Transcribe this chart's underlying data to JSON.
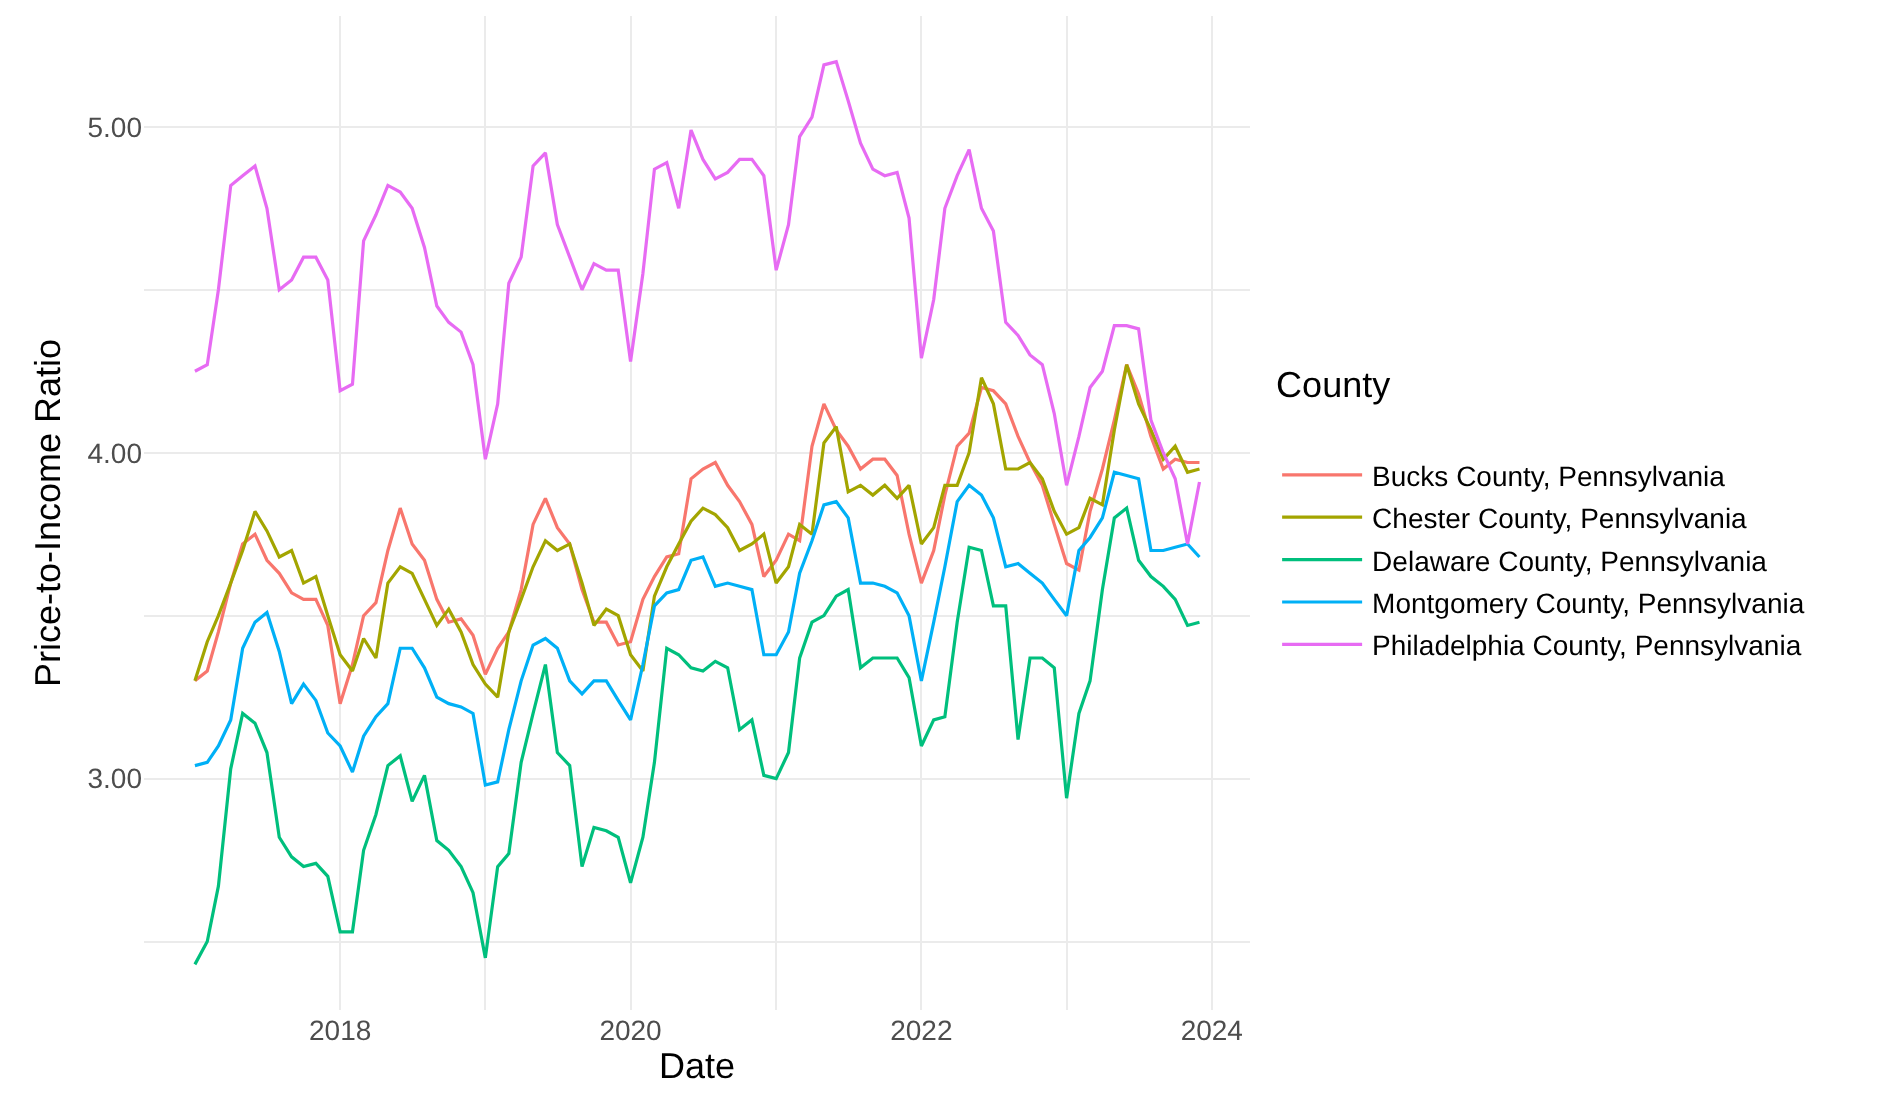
{
  "chart_data": {
    "type": "line",
    "xlabel": "Date",
    "ylabel": "Price-to-Income Ratio",
    "legend_title": "County",
    "legend": "right",
    "grid": true,
    "x": [
      "2017-01",
      "2017-02",
      "2017-03",
      "2017-04",
      "2017-05",
      "2017-06",
      "2017-07",
      "2017-08",
      "2017-09",
      "2017-10",
      "2017-11",
      "2017-12",
      "2018-01",
      "2018-02",
      "2018-03",
      "2018-04",
      "2018-05",
      "2018-06",
      "2018-07",
      "2018-08",
      "2018-09",
      "2018-10",
      "2018-11",
      "2018-12",
      "2019-01",
      "2019-02",
      "2019-03",
      "2019-04",
      "2019-05",
      "2019-06",
      "2019-07",
      "2019-08",
      "2019-09",
      "2019-10",
      "2019-11",
      "2019-12",
      "2020-01",
      "2020-02",
      "2020-03",
      "2020-04",
      "2020-05",
      "2020-06",
      "2020-07",
      "2020-08",
      "2020-09",
      "2020-10",
      "2020-11",
      "2020-12",
      "2021-01",
      "2021-02",
      "2021-03",
      "2021-04",
      "2021-05",
      "2021-06",
      "2021-07",
      "2021-08",
      "2021-09",
      "2021-10",
      "2021-11",
      "2021-12",
      "2022-01",
      "2022-02",
      "2022-03",
      "2022-04",
      "2022-05",
      "2022-06",
      "2022-07",
      "2022-08",
      "2022-09",
      "2022-10",
      "2022-11",
      "2022-12",
      "2023-01",
      "2023-02",
      "2023-03",
      "2023-04",
      "2023-05",
      "2023-06",
      "2023-07",
      "2023-08",
      "2023-09",
      "2023-10",
      "2023-11",
      "2023-12"
    ],
    "xlim": [
      "2016-08-26",
      "2024-04-06"
    ],
    "xticks": [
      {
        "value": "2018-01-01",
        "label": "2018"
      },
      {
        "value": "2019-01-01",
        "label": null
      },
      {
        "value": "2020-01-01",
        "label": "2020"
      },
      {
        "value": "2021-01-01",
        "label": null
      },
      {
        "value": "2022-01-01",
        "label": "2022"
      },
      {
        "value": "2023-01-01",
        "label": null
      },
      {
        "value": "2024-01-01",
        "label": "2024"
      }
    ],
    "ylim": [
      2.29,
      5.34
    ],
    "yticks": [
      {
        "value": 2.5,
        "label": null
      },
      {
        "value": 3,
        "label": "3.00"
      },
      {
        "value": 3.5,
        "label": null
      },
      {
        "value": 4,
        "label": "4.00"
      },
      {
        "value": 4.5,
        "label": null
      },
      {
        "value": 5,
        "label": "5.00"
      }
    ],
    "series": [
      {
        "name": "Bucks County, Pennsylvania",
        "color": "#f8766d",
        "values": [
          3.3,
          3.33,
          3.45,
          3.6,
          3.72,
          3.75,
          3.67,
          3.63,
          3.57,
          3.55,
          3.55,
          3.47,
          3.23,
          3.35,
          3.5,
          3.54,
          3.7,
          3.83,
          3.72,
          3.67,
          3.55,
          3.48,
          3.49,
          3.44,
          3.32,
          3.4,
          3.45,
          3.58,
          3.78,
          3.86,
          3.77,
          3.72,
          3.58,
          3.48,
          3.48,
          3.41,
          3.42,
          3.55,
          3.62,
          3.68,
          3.69,
          3.92,
          3.95,
          3.97,
          3.9,
          3.85,
          3.78,
          3.62,
          3.67,
          3.75,
          3.73,
          4.02,
          4.15,
          4.07,
          4.02,
          3.95,
          3.98,
          3.98,
          3.93,
          3.75,
          3.6,
          3.7,
          3.87,
          4.02,
          4.06,
          4.2,
          4.19,
          4.15,
          4.05,
          3.97,
          3.9,
          3.78,
          3.66,
          3.64,
          3.82,
          3.95,
          4.1,
          4.27,
          4.18,
          4.05,
          3.95,
          3.98,
          3.97,
          3.97
        ]
      },
      {
        "name": "Chester County, Pennsylvania",
        "color": "#a3a500",
        "values": [
          3.3,
          3.42,
          3.5,
          3.6,
          3.7,
          3.82,
          3.76,
          3.68,
          3.7,
          3.6,
          3.62,
          3.5,
          3.38,
          3.33,
          3.43,
          3.37,
          3.6,
          3.65,
          3.63,
          3.55,
          3.47,
          3.52,
          3.45,
          3.35,
          3.29,
          3.25,
          3.45,
          3.55,
          3.65,
          3.73,
          3.7,
          3.72,
          3.6,
          3.47,
          3.52,
          3.5,
          3.38,
          3.33,
          3.56,
          3.65,
          3.72,
          3.79,
          3.83,
          3.81,
          3.77,
          3.7,
          3.72,
          3.75,
          3.6,
          3.65,
          3.78,
          3.75,
          4.03,
          4.08,
          3.88,
          3.9,
          3.87,
          3.9,
          3.86,
          3.9,
          3.72,
          3.77,
          3.9,
          3.9,
          4.0,
          4.23,
          4.15,
          3.95,
          3.95,
          3.97,
          3.92,
          3.82,
          3.75,
          3.77,
          3.86,
          3.84,
          4.07,
          4.27,
          4.15,
          4.07,
          3.98,
          4.02,
          3.94,
          3.95
        ]
      },
      {
        "name": "Delaware County, Pennsylvania",
        "color": "#00bf7d",
        "values": [
          2.43,
          2.5,
          2.67,
          3.03,
          3.2,
          3.17,
          3.08,
          2.82,
          2.76,
          2.73,
          2.74,
          2.7,
          2.53,
          2.53,
          2.78,
          2.89,
          3.04,
          3.07,
          2.93,
          3.01,
          2.81,
          2.78,
          2.73,
          2.65,
          2.45,
          2.73,
          2.77,
          3.05,
          3.2,
          3.35,
          3.08,
          3.04,
          2.73,
          2.85,
          2.84,
          2.82,
          2.68,
          2.82,
          3.05,
          3.4,
          3.38,
          3.34,
          3.33,
          3.36,
          3.34,
          3.15,
          3.18,
          3.01,
          3.0,
          3.08,
          3.37,
          3.48,
          3.5,
          3.56,
          3.58,
          3.34,
          3.37,
          3.37,
          3.37,
          3.31,
          3.1,
          3.18,
          3.19,
          3.48,
          3.71,
          3.7,
          3.53,
          3.53,
          3.12,
          3.37,
          3.37,
          3.34,
          2.94,
          3.2,
          3.3,
          3.58,
          3.8,
          3.83,
          3.67,
          3.62,
          3.59,
          3.55,
          3.47,
          3.48
        ]
      },
      {
        "name": "Montgomery County, Pennsylvania",
        "color": "#00b0f6",
        "values": [
          3.04,
          3.05,
          3.1,
          3.18,
          3.4,
          3.48,
          3.51,
          3.39,
          3.23,
          3.29,
          3.24,
          3.14,
          3.1,
          3.02,
          3.13,
          3.19,
          3.23,
          3.4,
          3.4,
          3.34,
          3.25,
          3.23,
          3.22,
          3.2,
          2.98,
          2.99,
          3.15,
          3.3,
          3.41,
          3.43,
          3.4,
          3.3,
          3.26,
          3.3,
          3.3,
          3.24,
          3.18,
          3.35,
          3.53,
          3.57,
          3.58,
          3.67,
          3.68,
          3.59,
          3.6,
          3.59,
          3.58,
          3.38,
          3.38,
          3.45,
          3.63,
          3.73,
          3.84,
          3.85,
          3.8,
          3.6,
          3.6,
          3.59,
          3.57,
          3.5,
          3.3,
          3.48,
          3.65,
          3.85,
          3.9,
          3.87,
          3.8,
          3.65,
          3.66,
          3.63,
          3.6,
          3.55,
          3.5,
          3.7,
          3.74,
          3.8,
          3.94,
          3.93,
          3.92,
          3.7,
          3.7,
          3.71,
          3.72,
          3.68
        ]
      },
      {
        "name": "Philadelphia County, Pennsylvania",
        "color": "#e76bf3",
        "values": [
          4.25,
          4.27,
          4.5,
          4.82,
          4.85,
          4.88,
          4.75,
          4.5,
          4.53,
          4.6,
          4.6,
          4.53,
          4.19,
          4.21,
          4.65,
          4.73,
          4.82,
          4.8,
          4.75,
          4.63,
          4.45,
          4.4,
          4.37,
          4.27,
          3.98,
          4.15,
          4.52,
          4.6,
          4.88,
          4.92,
          4.7,
          4.6,
          4.5,
          4.58,
          4.56,
          4.56,
          4.28,
          4.55,
          4.87,
          4.89,
          4.75,
          4.99,
          4.9,
          4.84,
          4.86,
          4.9,
          4.9,
          4.85,
          4.56,
          4.7,
          4.97,
          5.03,
          5.19,
          5.2,
          5.08,
          4.95,
          4.87,
          4.85,
          4.86,
          4.72,
          4.29,
          4.47,
          4.75,
          4.85,
          4.93,
          4.75,
          4.68,
          4.4,
          4.36,
          4.3,
          4.27,
          4.12,
          3.9,
          4.05,
          4.2,
          4.25,
          4.39,
          4.39,
          4.38,
          4.1,
          4.0,
          3.92,
          3.72,
          3.91
        ]
      }
    ]
  }
}
